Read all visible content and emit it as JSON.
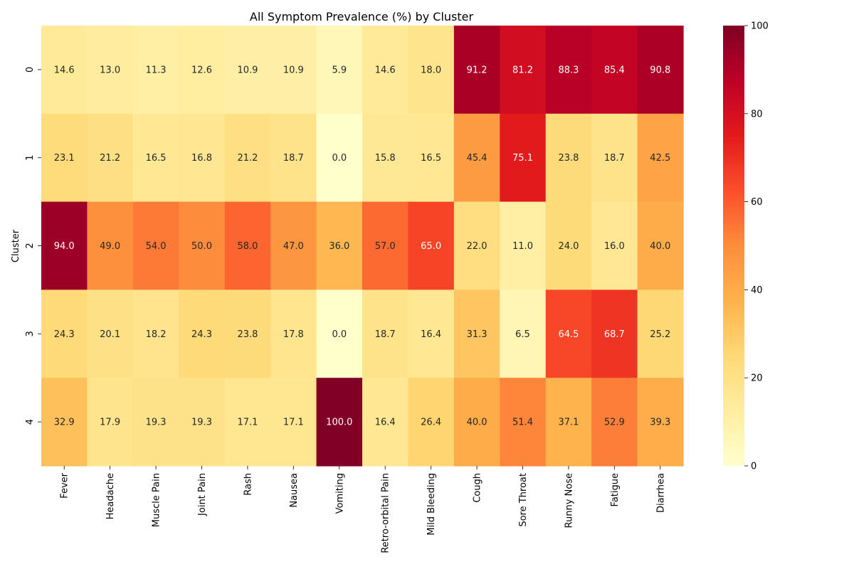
{
  "chart_data": {
    "type": "heatmap",
    "title": "All Symptom Prevalence (%) by Cluster",
    "xlabel": "",
    "ylabel": "Cluster",
    "columns": [
      "Fever",
      "Headache",
      "Muscle Pain",
      "Joint Pain",
      "Rash",
      "Nausea",
      "Vomiting",
      "Retro-orbital Pain",
      "Mild Bleeding",
      "Cough",
      "Sore Throat",
      "Runny Nose",
      "Fatigue",
      "Diarrhea"
    ],
    "rows": [
      "0",
      "1",
      "2",
      "3",
      "4"
    ],
    "values": [
      [
        14.6,
        13.0,
        11.3,
        12.6,
        10.9,
        10.9,
        5.9,
        14.6,
        18.0,
        91.2,
        81.2,
        88.3,
        85.4,
        90.8
      ],
      [
        23.1,
        21.2,
        16.5,
        16.8,
        21.2,
        18.7,
        0.0,
        15.8,
        16.5,
        45.4,
        75.1,
        23.8,
        18.7,
        42.5
      ],
      [
        94.0,
        49.0,
        54.0,
        50.0,
        58.0,
        47.0,
        36.0,
        57.0,
        65.0,
        22.0,
        11.0,
        24.0,
        16.0,
        40.0
      ],
      [
        24.3,
        20.1,
        18.2,
        24.3,
        23.8,
        17.8,
        0.0,
        18.7,
        16.4,
        31.3,
        6.5,
        64.5,
        68.7,
        25.2
      ],
      [
        32.9,
        17.9,
        19.3,
        19.3,
        17.1,
        17.1,
        100.0,
        16.4,
        26.4,
        40.0,
        51.4,
        37.1,
        52.9,
        39.3
      ]
    ],
    "value_format": "1 decimal",
    "colormap": "YlOrRd",
    "colormap_stops": [
      "#ffffcc",
      "#ffeda0",
      "#fed976",
      "#feb24c",
      "#fd8d3c",
      "#fc4e2a",
      "#e31a1c",
      "#bd0026",
      "#800026"
    ],
    "vmin": 0,
    "vmax": 100,
    "colorbar_ticks": [
      0,
      20,
      40,
      60,
      80,
      100
    ],
    "grid": false
  }
}
